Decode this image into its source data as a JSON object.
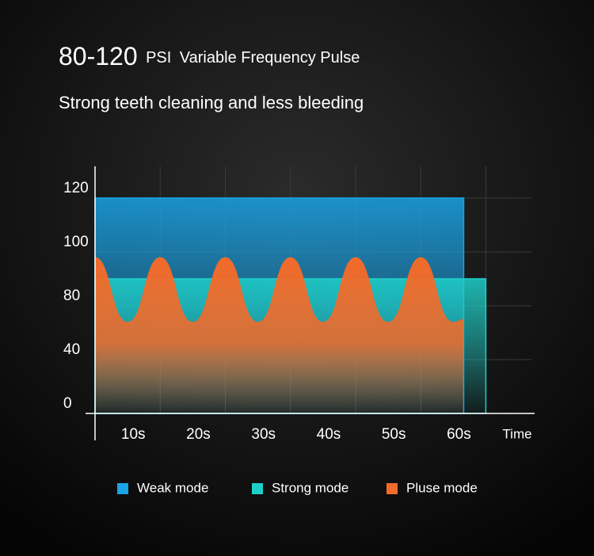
{
  "chart_data": {
    "type": "area",
    "title": {
      "value": "80-120",
      "unit": "PSI",
      "text": "Variable Frequency Pulse"
    },
    "subtitle": "Strong teeth cleaning and less bleeding",
    "x_label": "Time",
    "xlim": [
      0,
      67
    ],
    "xticks": [
      {
        "value": 10,
        "label": "10s"
      },
      {
        "value": 20,
        "label": "20s"
      },
      {
        "value": 30,
        "label": "30s"
      },
      {
        "value": 40,
        "label": "40s"
      },
      {
        "value": 50,
        "label": "50s"
      },
      {
        "value": 60,
        "label": "60s"
      }
    ],
    "ylim": [
      0,
      130
    ],
    "yticks": [
      0,
      40,
      80,
      100,
      120
    ],
    "grid": true,
    "series": [
      {
        "name": "Weak mode",
        "color": "#1aa3e6",
        "x": [
          0,
          56.6
        ],
        "values": [
          120,
          120
        ]
      },
      {
        "name": "Strong mode",
        "color": "#1fd0c9",
        "x": [
          0,
          60
        ],
        "values": [
          90,
          90
        ]
      },
      {
        "name": "Pluse mode",
        "color": "#f26b2a",
        "x": [
          0,
          5,
          10,
          15,
          20,
          25,
          30,
          35,
          40,
          45,
          50,
          55,
          56.6
        ],
        "values": [
          98,
          68,
          98,
          68,
          98,
          68,
          98,
          68,
          98,
          68,
          98,
          68,
          70
        ]
      }
    ]
  }
}
